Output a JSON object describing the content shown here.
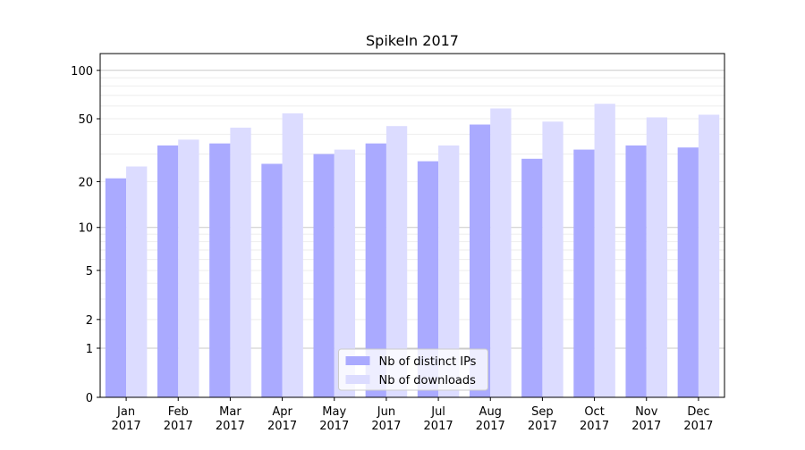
{
  "chart_data": {
    "type": "bar",
    "title": "SpikeIn 2017",
    "categories": [
      "Jan 2017",
      "Feb 2017",
      "Mar 2017",
      "Apr 2017",
      "May 2017",
      "Jun 2017",
      "Jul 2017",
      "Aug 2017",
      "Sep 2017",
      "Oct 2017",
      "Nov 2017",
      "Dec 2017"
    ],
    "series": [
      {
        "name": "Nb of distinct IPs",
        "color": "#aaaaff",
        "values": [
          21,
          34,
          35,
          26,
          30,
          35,
          27,
          46,
          28,
          32,
          34,
          33
        ]
      },
      {
        "name": "Nb of downloads",
        "color": "#dcdcff",
        "values": [
          25,
          37,
          44,
          54,
          32,
          45,
          34,
          58,
          48,
          62,
          51,
          53
        ]
      }
    ],
    "yscale": "log1p",
    "ylim": [
      0,
      127
    ],
    "yticks": [
      0,
      1,
      2,
      5,
      10,
      20,
      50,
      100
    ],
    "minor_yticks": [
      3,
      4,
      6,
      7,
      8,
      9,
      30,
      40,
      60,
      70,
      80,
      90
    ],
    "grid": true,
    "legend": "lower center"
  }
}
